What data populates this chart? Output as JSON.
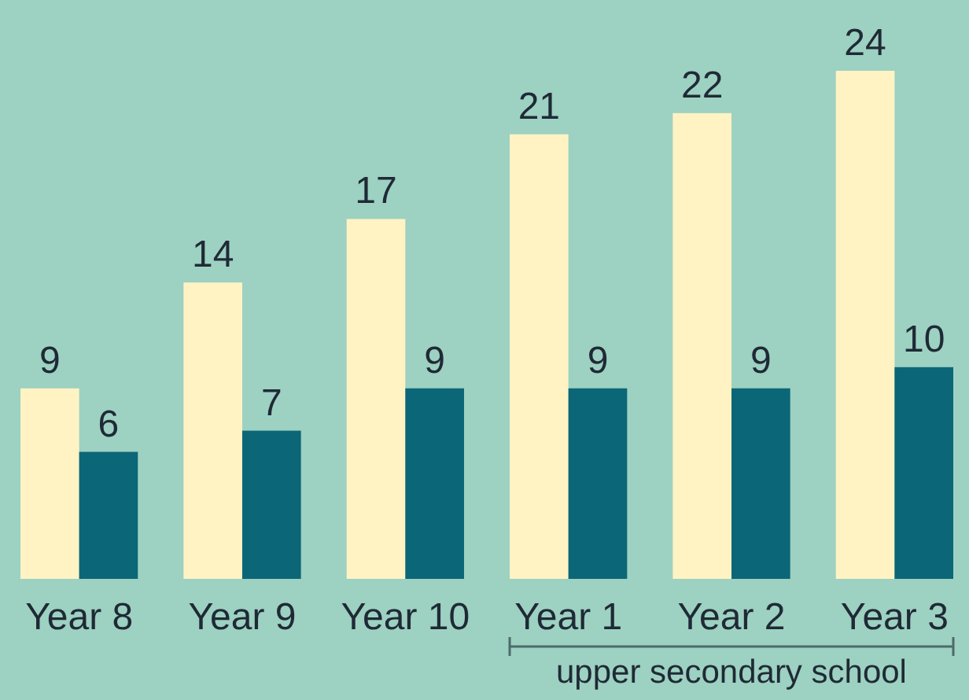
{
  "chart_data": {
    "type": "bar",
    "categories": [
      "Year 8",
      "Year 9",
      "Year 10",
      "Year 1",
      "Year 2",
      "Year 3"
    ],
    "series": [
      {
        "color": "#fff3c4",
        "values": [
          9,
          14,
          17,
          21,
          22,
          24
        ]
      },
      {
        "color": "#0b6677",
        "values": [
          6,
          7,
          9,
          9,
          9,
          10
        ]
      }
    ],
    "data_labels": true,
    "annotations": [
      "upper secondary school"
    ]
  }
}
